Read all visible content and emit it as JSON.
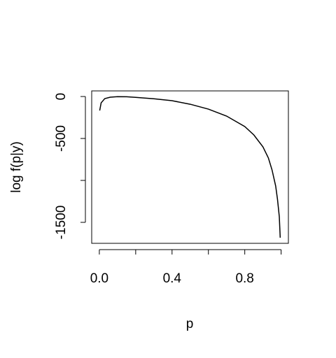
{
  "chart_data": {
    "type": "line",
    "xlabel": "p",
    "ylabel": "log f(p|y)",
    "x": [
      0.002,
      0.01,
      0.03,
      0.06,
      0.1,
      0.15,
      0.2,
      0.3,
      0.4,
      0.5,
      0.6,
      0.7,
      0.8,
      0.85,
      0.9,
      0.93,
      0.95,
      0.97,
      0.98,
      0.99,
      0.995
    ],
    "series": [
      {
        "color": "#000000",
        "values": [
          -167,
          -75,
          -25,
          -8,
          -2,
          -3,
          -10,
          -27,
          -50,
          -92,
          -150,
          -233,
          -358,
          -458,
          -600,
          -733,
          -875,
          -1067,
          -1225,
          -1433,
          -1683
        ]
      }
    ],
    "xlim": [
      -0.042,
      1.04
    ],
    "ylim": [
      -1750,
      67
    ],
    "xticks": [
      {
        "value": 0,
        "label": "0.0"
      },
      {
        "value": 0.2,
        "label": null
      },
      {
        "value": 0.4,
        "label": "0.4"
      },
      {
        "value": 0.6,
        "label": null
      },
      {
        "value": 0.8,
        "label": "0.8"
      },
      {
        "value": 1,
        "label": null
      }
    ],
    "yticks": [
      0,
      -500,
      {
        "value": -1000,
        "label": null
      },
      -1500
    ]
  }
}
